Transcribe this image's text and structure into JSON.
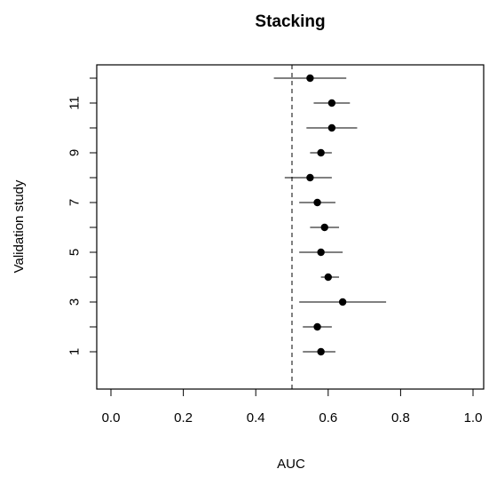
{
  "chart_data": {
    "type": "scatter",
    "title": "Stacking",
    "xlabel": "AUC",
    "ylabel": "Validation study",
    "xlim": [
      0.0,
      1.0
    ],
    "ylim": [
      0,
      12
    ],
    "x_ticks": [
      "0.0",
      "0.2",
      "0.4",
      "0.6",
      "0.8",
      "1.0"
    ],
    "y_ticks": [
      "1",
      "3",
      "5",
      "7",
      "9",
      "11"
    ],
    "reference_line": 0.5,
    "legend": "none",
    "grid": false,
    "series": [
      {
        "points": [
          {
            "study": 1,
            "auc": 0.58,
            "lower": 0.53,
            "upper": 0.62
          },
          {
            "study": 2,
            "auc": 0.57,
            "lower": 0.53,
            "upper": 0.61
          },
          {
            "study": 3,
            "auc": 0.64,
            "lower": 0.52,
            "upper": 0.76
          },
          {
            "study": 4,
            "auc": 0.6,
            "lower": 0.58,
            "upper": 0.63
          },
          {
            "study": 5,
            "auc": 0.58,
            "lower": 0.52,
            "upper": 0.64
          },
          {
            "study": 6,
            "auc": 0.59,
            "lower": 0.55,
            "upper": 0.63
          },
          {
            "study": 7,
            "auc": 0.57,
            "lower": 0.52,
            "upper": 0.62
          },
          {
            "study": 8,
            "auc": 0.55,
            "lower": 0.48,
            "upper": 0.61
          },
          {
            "study": 9,
            "auc": 0.58,
            "lower": 0.55,
            "upper": 0.61
          },
          {
            "study": 10,
            "auc": 0.61,
            "lower": 0.54,
            "upper": 0.68
          },
          {
            "study": 11,
            "auc": 0.61,
            "lower": 0.56,
            "upper": 0.66
          },
          {
            "study": 12,
            "auc": 0.55,
            "lower": 0.45,
            "upper": 0.65
          }
        ]
      }
    ]
  }
}
